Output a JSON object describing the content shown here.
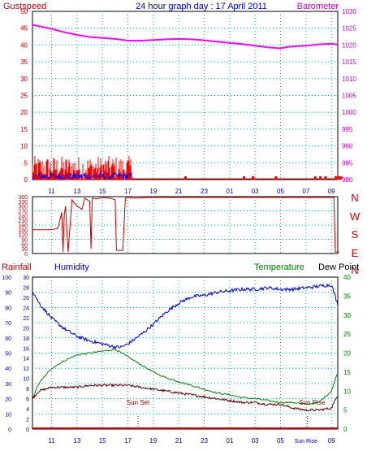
{
  "header": {
    "left_label": "Gustspeed",
    "title": "24 hour graph day : 17 April 2011",
    "right_label": "Barometer"
  },
  "colors": {
    "gust": "#ff0000",
    "wind": "#0000ff",
    "barometer": "#ff00ff",
    "wind_direction": "#cc0000",
    "humidity": "#0000cc",
    "temperature": "#008000",
    "dewpoint": "#550000",
    "rainfall": "#cc0000",
    "axis_left": "#cc0000",
    "axis_right": "#cc00cc",
    "axis_green": "#008000",
    "axis_blue": "#0000aa",
    "grid": "#1aa0a0",
    "sun_marker": "#880000"
  },
  "chart_data": [
    {
      "type": "line",
      "name": "gust-barometer",
      "x_ticks": [
        "11",
        "13",
        "15",
        "17",
        "19",
        "21",
        "23",
        "01",
        "03",
        "05",
        "07",
        "09"
      ],
      "y_left": {
        "ylim": [
          0,
          50
        ],
        "ticks": [
          0,
          5,
          10,
          15,
          20,
          25,
          30,
          35,
          40,
          45,
          50
        ]
      },
      "y_right": {
        "ylim": [
          980,
          1030
        ],
        "ticks": [
          980,
          985,
          990,
          995,
          1000,
          1005,
          1010,
          1015,
          1020,
          1025,
          1030
        ],
        "tick_labels": [
          "980",
          "985",
          "990",
          "995",
          "1000",
          "1005",
          "1010",
          "1015",
          "1020",
          "1025",
          "1030"
        ]
      },
      "barometer": {
        "x": [
          9.5,
          10,
          11,
          12,
          13,
          14,
          15,
          16,
          17,
          18,
          19,
          20,
          21,
          22,
          23,
          24,
          25,
          26,
          27,
          28,
          29,
          29.5,
          30,
          31,
          32,
          33,
          33.5
        ],
        "y": [
          1026,
          1025.6,
          1024.8,
          1023.8,
          1023,
          1022.4,
          1022.1,
          1021.8,
          1021.3,
          1021.3,
          1021.5,
          1021.7,
          1021.8,
          1021.7,
          1021.4,
          1021,
          1020.6,
          1020.3,
          1019.8,
          1019.3,
          1019,
          1019.4,
          1019.6,
          1019.8,
          1020.2,
          1020.4,
          1020.1
        ]
      },
      "gust_range": {
        "x_start": 9.5,
        "x_end": 17.3,
        "max": 7
      },
      "wind_range": {
        "x_start": 9.5,
        "x_end": 17.3,
        "max": 2
      },
      "late_gust_spikes": [
        21.5,
        26.1,
        26.8,
        28.6,
        31.7,
        32.1,
        32.5,
        33.3,
        33.5,
        33.7
      ],
      "late_gust_height": 1
    },
    {
      "type": "line",
      "name": "wind-direction",
      "compass_labels": [
        "N",
        "W",
        "S",
        "E",
        "N"
      ],
      "y_ticks": [
        0,
        30,
        60,
        90,
        120,
        150,
        180,
        210,
        240,
        270,
        300,
        330,
        360
      ],
      "ylim": [
        0,
        360
      ],
      "points": [
        [
          9.5,
          150
        ],
        [
          11,
          150
        ],
        [
          11.5,
          160
        ],
        [
          11.8,
          260
        ],
        [
          11.9,
          10
        ],
        [
          12,
          250
        ],
        [
          12.1,
          300
        ],
        [
          12.3,
          10
        ],
        [
          12.6,
          340
        ],
        [
          13,
          300
        ],
        [
          13.4,
          280
        ],
        [
          13.6,
          350
        ],
        [
          14,
          330
        ],
        [
          14.1,
          30
        ],
        [
          14.2,
          350
        ],
        [
          14.5,
          345
        ],
        [
          15,
          355
        ],
        [
          15.6,
          350
        ],
        [
          16,
          340
        ],
        [
          16.1,
          20
        ],
        [
          16.6,
          20
        ],
        [
          16.8,
          350
        ],
        [
          17,
          355
        ],
        [
          17.5,
          350
        ],
        [
          19,
          355
        ],
        [
          21,
          355
        ],
        [
          23,
          355
        ],
        [
          25,
          355
        ],
        [
          27,
          355
        ],
        [
          29,
          355
        ],
        [
          31,
          355
        ],
        [
          33.2,
          355
        ],
        [
          33.3,
          10
        ],
        [
          33.6,
          10
        ]
      ]
    },
    {
      "type": "line",
      "name": "rain-humidity-temperature-dewpoint",
      "top_labels": {
        "rainfall": "Rainfall",
        "humidity": "Humidity",
        "temperature": "Temperature",
        "dewpoint": "Dew Point"
      },
      "x_ticks": [
        "11",
        "13",
        "15",
        "17",
        "19",
        "21",
        "23",
        "01",
        "03",
        "05",
        "Sun Rise",
        "09"
      ],
      "humidity_axis": {
        "ylim": [
          0,
          100
        ],
        "ticks": [
          0,
          10,
          20,
          30,
          40,
          50,
          60,
          70,
          80,
          90,
          100
        ]
      },
      "rain_axis": {
        "ylim": [
          0,
          30
        ],
        "ticks": [
          0,
          2,
          4,
          6,
          8,
          10,
          12,
          14,
          16,
          18,
          20,
          22,
          24,
          26,
          28,
          30
        ]
      },
      "temp_axis": {
        "ylim": [
          0,
          40
        ],
        "ticks": [
          0,
          5,
          10,
          15,
          20,
          25,
          30,
          35,
          40
        ]
      },
      "sunset": {
        "label": "Sun Set",
        "x": 17.8
      },
      "sunrise": {
        "label": "Sun Rise",
        "x": 31.1
      },
      "humidity": {
        "x": [
          9.5,
          10,
          11,
          12,
          13,
          14,
          15,
          16,
          16.5,
          17,
          18,
          19,
          20,
          21,
          22,
          23,
          24,
          25,
          26,
          27,
          28,
          29,
          30,
          31,
          32,
          33,
          33.5
        ],
        "y": [
          91,
          83,
          73,
          66,
          61,
          58,
          56,
          54,
          54,
          56,
          62,
          69,
          77,
          83,
          87,
          88,
          90,
          91,
          92,
          92,
          93,
          92,
          92,
          93,
          94,
          95,
          82
        ]
      },
      "temperature": {
        "x": [
          9.5,
          10,
          11,
          12,
          13,
          14,
          15,
          16,
          17,
          18,
          19,
          20,
          21,
          22,
          23,
          24,
          25,
          26,
          27,
          28,
          29,
          30,
          31,
          32,
          33,
          33.5
        ],
        "y": [
          8,
          12,
          16,
          18,
          19.5,
          20,
          20.5,
          21,
          19,
          17,
          15,
          13.5,
          12.5,
          11.5,
          10.5,
          9.5,
          9,
          8.3,
          8,
          7.5,
          7,
          7,
          6.5,
          7,
          10,
          15
        ]
      },
      "dewpoint": {
        "x": [
          9.5,
          10,
          11,
          12,
          13,
          14,
          15,
          16,
          17,
          18,
          19,
          20,
          21,
          22,
          23,
          24,
          25,
          26,
          27,
          28,
          29,
          30,
          31,
          32,
          33,
          33.5
        ],
        "y": [
          8,
          10,
          11,
          11,
          11,
          11.5,
          11.5,
          11.5,
          11.5,
          11,
          10.5,
          10,
          9.5,
          9,
          8.5,
          8,
          7.5,
          7,
          7,
          6.5,
          6.5,
          5.5,
          5,
          5,
          5.5,
          9
        ]
      },
      "rainfall": {
        "x": [
          9.5,
          33.5
        ],
        "y": [
          0,
          0
        ]
      }
    }
  ]
}
